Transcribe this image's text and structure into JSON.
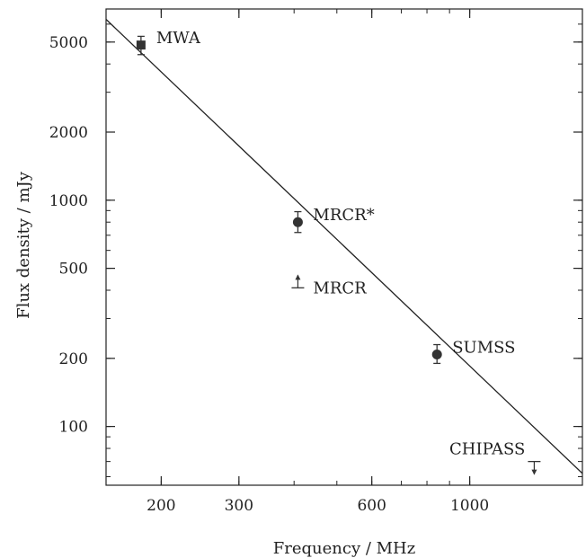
{
  "chart_data": {
    "type": "scatter",
    "xlabel": "Frequency / MHz",
    "ylabel": "Flux density / mJy",
    "xscale": "log",
    "yscale": "log",
    "xlim": [
      150,
      1800
    ],
    "ylim": [
      55,
      7000
    ],
    "xticks": [
      200,
      300,
      600,
      1000
    ],
    "yticks": [
      100,
      200,
      500,
      1000,
      2000,
      5000
    ],
    "grid": false,
    "points": [
      {
        "label": "MWA",
        "x": 180,
        "y": 4850,
        "err_lo": 450,
        "err_hi": 450,
        "marker": "square",
        "limit": "none"
      },
      {
        "label": "MRCR*",
        "x": 408,
        "y": 800,
        "err_lo": 80,
        "err_hi": 90,
        "marker": "circle",
        "limit": "none"
      },
      {
        "label": "MRCR",
        "x": 408,
        "y": 410,
        "marker": "none",
        "limit": "lower"
      },
      {
        "label": "SUMSS",
        "x": 843,
        "y": 208,
        "err_lo": 18,
        "err_hi": 22,
        "marker": "circle",
        "limit": "none"
      },
      {
        "label": "CHIPASS",
        "x": 1400,
        "y": 70,
        "marker": "none",
        "limit": "upper"
      }
    ],
    "fit_line": {
      "x": [
        150,
        1800
      ],
      "y": [
        6300,
        62
      ]
    },
    "colors": {
      "marker": "#333333",
      "line": "#222222",
      "frame": "#222222"
    }
  }
}
